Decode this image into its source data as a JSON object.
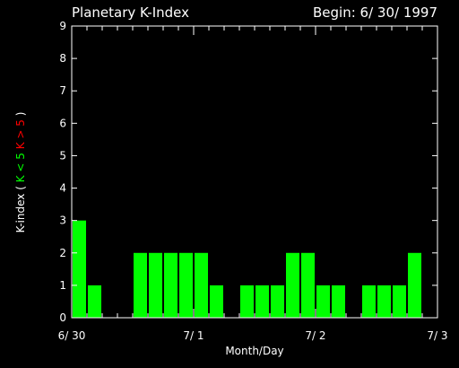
{
  "chart_data": {
    "type": "bar",
    "title": "Planetary K-Index",
    "subtitle": "Begin: 6/ 30/ 1997",
    "xlabel": "Month/Day",
    "ylabel_parts": [
      {
        "text": "K-index",
        "color": "#ffffff"
      },
      {
        "text": "(",
        "color": "#ffffff"
      },
      {
        "text": "K < 5",
        "color": "#00ff00"
      },
      {
        "text": "K > 5",
        "color": "#ff0000"
      },
      {
        "text": ")",
        "color": "#ffffff"
      }
    ],
    "ylim": [
      0,
      9
    ],
    "y_ticks": [
      0,
      1,
      2,
      3,
      4,
      5,
      6,
      7,
      8,
      9
    ],
    "x_range_hours": [
      0,
      72
    ],
    "x_ticks": [
      {
        "hour": 0,
        "label": "6/ 30"
      },
      {
        "hour": 24,
        "label": "7/ 1"
      },
      {
        "hour": 48,
        "label": "7/ 2"
      },
      {
        "hour": 72,
        "label": "7/ 3"
      }
    ],
    "bar_interval_hours": 3,
    "values": [
      3,
      1,
      0,
      0,
      2,
      2,
      2,
      2,
      2,
      1,
      0,
      1,
      1,
      1,
      2,
      2,
      1,
      1,
      0,
      1,
      1,
      1,
      2,
      0
    ],
    "colors": {
      "normal": "#00ff00",
      "storm": "#ff0000",
      "frame": "#ffffff",
      "background": "#000000"
    }
  }
}
